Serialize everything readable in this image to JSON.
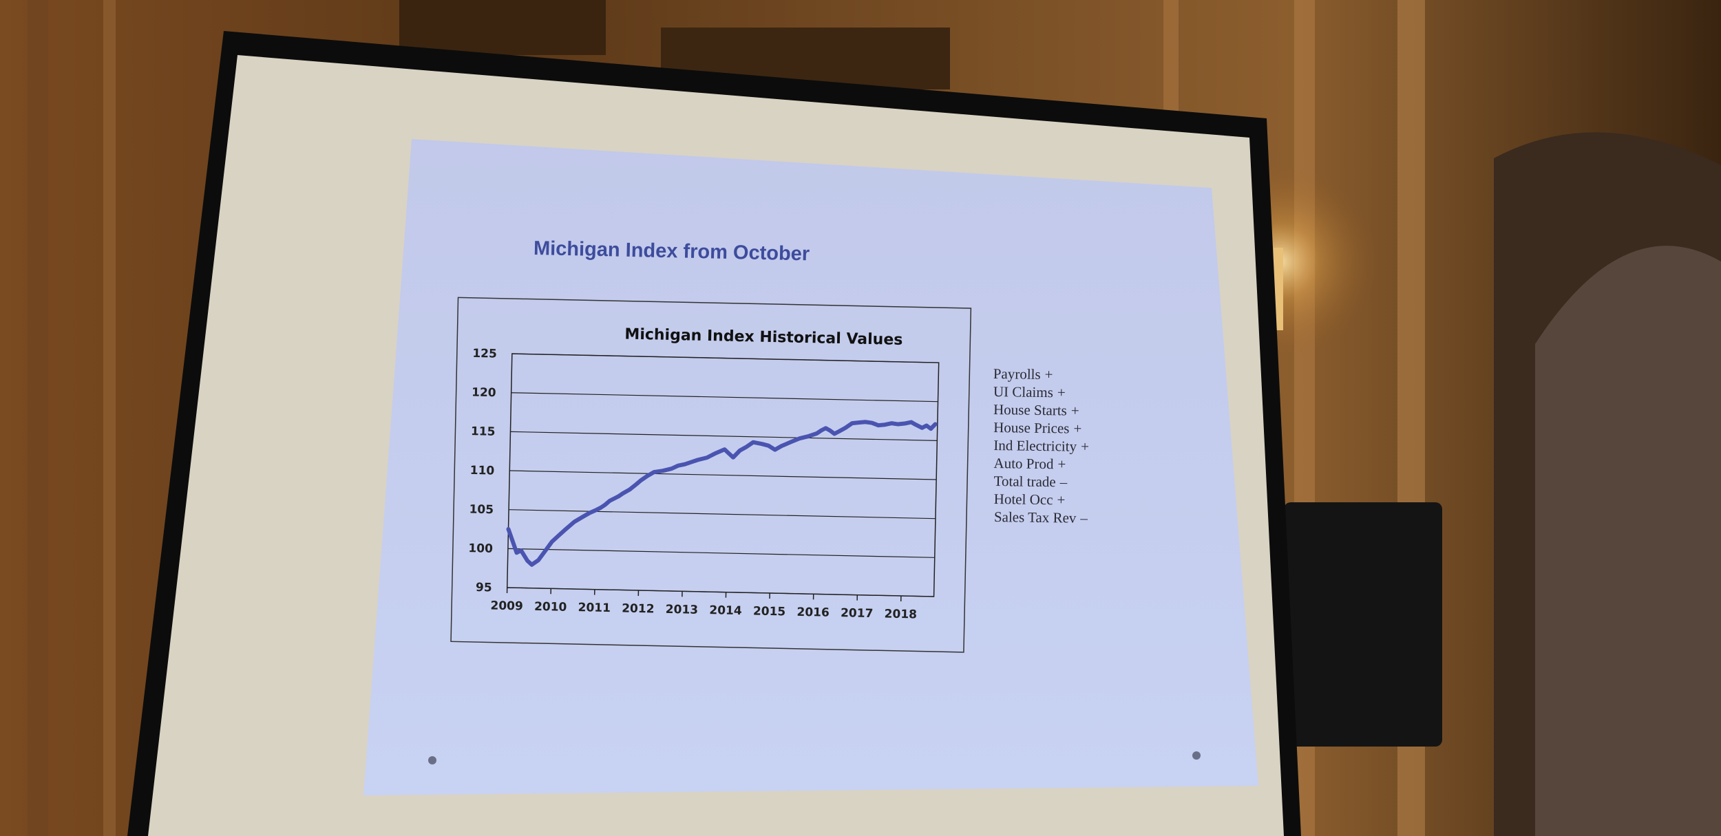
{
  "slide": {
    "title": "Michigan Index from October",
    "indicators": [
      {
        "label": "Payrolls",
        "sign": "+"
      },
      {
        "label": "UI Claims",
        "sign": "+"
      },
      {
        "label": "House Starts",
        "sign": "+"
      },
      {
        "label": "House Prices",
        "sign": "+"
      },
      {
        "label": "Ind Electricity",
        "sign": "+"
      },
      {
        "label": "Auto Prod",
        "sign": "+"
      },
      {
        "label": "Total trade",
        "sign": "–"
      },
      {
        "label": "Hotel Occ",
        "sign": "+"
      },
      {
        "label": "Sales Tax Rev",
        "sign": "–"
      }
    ]
  },
  "chart_data": {
    "type": "line",
    "title": "Michigan Index Historical Values",
    "xlabel": "",
    "ylabel": "",
    "ylim": [
      95,
      125
    ],
    "xlim": [
      2009,
      2018.75
    ],
    "y_ticks": [
      "95",
      "100",
      "105",
      "110",
      "115",
      "120",
      "125"
    ],
    "x_ticks": [
      "2009",
      "2010",
      "2011",
      "2012",
      "2013",
      "2014",
      "2015",
      "2016",
      "2017",
      "2018"
    ],
    "grid": "horizontal",
    "series": [
      {
        "color": "#4a54b0",
        "x": [
          2009.0,
          2009.1,
          2009.2,
          2009.3,
          2009.45,
          2009.55,
          2009.7,
          2009.85,
          2010.0,
          2010.15,
          2010.3,
          2010.5,
          2010.7,
          2010.85,
          2011.0,
          2011.1,
          2011.2,
          2011.3,
          2011.4,
          2011.5,
          2011.6,
          2011.75,
          2011.9,
          2012.0,
          2012.15,
          2012.3,
          2012.5,
          2012.7,
          2012.85,
          2013.0,
          2013.15,
          2013.3,
          2013.5,
          2013.7,
          2013.9,
          2014.0,
          2014.1,
          2014.25,
          2014.4,
          2014.55,
          2014.75,
          2014.9,
          2015.05,
          2015.2,
          2015.4,
          2015.6,
          2015.8,
          2016.0,
          2016.1,
          2016.2,
          2016.3,
          2016.4,
          2016.5,
          2016.65,
          2016.8,
          2016.95,
          2017.1,
          2017.25,
          2017.4,
          2017.55,
          2017.7,
          2017.85,
          2018.0,
          2018.15,
          2018.25,
          2018.4,
          2018.5,
          2018.6,
          2018.7
        ],
        "y": [
          102.5,
          101.0,
          99.5,
          99.8,
          98.5,
          98.0,
          98.6,
          99.8,
          101.0,
          101.8,
          102.6,
          103.6,
          104.3,
          104.8,
          105.2,
          105.5,
          105.9,
          106.4,
          106.7,
          107.0,
          107.4,
          107.9,
          108.6,
          109.1,
          109.7,
          110.2,
          110.4,
          110.7,
          111.1,
          111.3,
          111.6,
          111.9,
          112.2,
          112.8,
          113.3,
          112.8,
          112.3,
          113.2,
          113.7,
          114.3,
          114.1,
          113.9,
          113.4,
          113.9,
          114.4,
          114.9,
          115.2,
          115.6,
          116.0,
          116.3,
          116.0,
          115.6,
          115.9,
          116.4,
          117.0,
          117.1,
          117.2,
          117.1,
          116.8,
          116.9,
          117.1,
          117.0,
          117.1,
          117.3,
          117.0,
          116.6,
          116.9,
          116.5,
          117.1
        ]
      }
    ]
  }
}
